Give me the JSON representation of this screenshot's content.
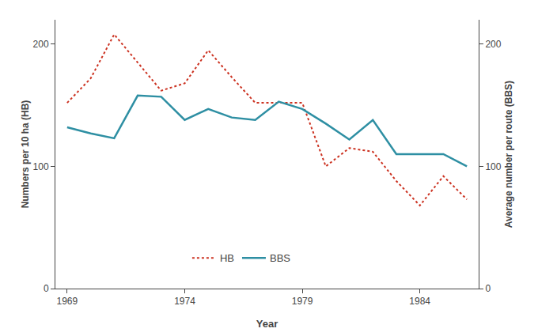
{
  "chart_data": {
    "type": "line",
    "xlabel": "Year",
    "ylabel": "Numbers per 10 ha (HB)",
    "y2label": "Average number per route (BBS)",
    "x": [
      1969,
      1970,
      1971,
      1972,
      1973,
      1974,
      1975,
      1976,
      1977,
      1978,
      1979,
      1980,
      1981,
      1982,
      1983,
      1984,
      1985,
      1986
    ],
    "series": [
      {
        "name": "HB",
        "color": "#cc3322",
        "line_style": "dotted",
        "values": [
          152,
          172,
          208,
          185,
          162,
          168,
          195,
          173,
          152,
          152,
          152,
          100,
          115,
          112,
          88,
          68,
          92,
          73
        ]
      },
      {
        "name": "BBS",
        "color": "#2e8fa3",
        "line_style": "solid",
        "axis": "y2",
        "values": [
          132,
          127,
          123,
          158,
          157,
          138,
          147,
          140,
          138,
          153,
          147,
          135,
          122,
          138,
          110,
          110,
          110,
          100
        ]
      }
    ],
    "xlim": [
      1968.5,
      1986.5
    ],
    "xticks": [
      1969,
      1974,
      1979,
      1984
    ],
    "ylim": [
      0,
      220
    ],
    "yticks": [
      0,
      100,
      200
    ],
    "y2lim": [
      0,
      220
    ],
    "y2ticks": [
      0,
      100,
      200
    ],
    "grid": false,
    "legend": "bottom"
  }
}
